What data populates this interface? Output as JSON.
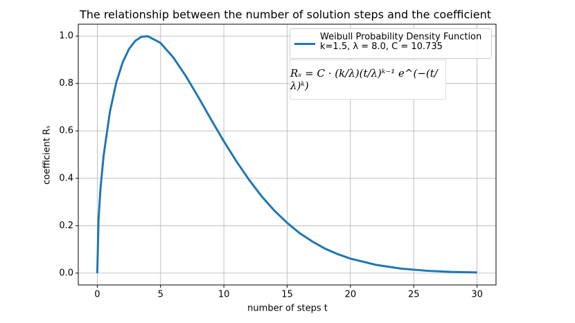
{
  "chart_data": {
    "type": "line",
    "title": "The relationship between the number of solution steps and the coefficient",
    "x_label": "number of steps t",
    "y_label": "coefficient Rₛ",
    "formula": "Rₛ = C · (k/λ)(t/λ)ᵏ⁻¹ e^(−(t/λ)ᵏ)",
    "x": [
      0,
      0.1,
      0.25,
      0.5,
      1,
      1.5,
      2,
      2.5,
      3,
      3.5,
      4,
      5,
      6,
      7,
      8,
      9,
      10,
      11,
      12,
      13,
      14,
      15,
      16,
      17,
      18,
      19,
      20,
      22,
      24,
      26,
      28,
      30
    ],
    "series": [
      {
        "name": "Weibull Probability Density Function\nk=1.5, λ = 8.0, C = 10.735",
        "color": "#1f77b4",
        "values": [
          0,
          0.225,
          0.354,
          0.495,
          0.681,
          0.804,
          0.888,
          0.945,
          0.98,
          0.997,
          0.999,
          0.971,
          0.91,
          0.831,
          0.741,
          0.647,
          0.556,
          0.471,
          0.393,
          0.323,
          0.263,
          0.212,
          0.168,
          0.133,
          0.103,
          0.08,
          0.061,
          0.035,
          0.019,
          0.01,
          0.005,
          0.003
        ]
      }
    ],
    "xlim": [
      -1.5,
      31.5
    ],
    "ylim": [
      -0.05,
      1.05
    ],
    "xticks": [
      0,
      5,
      10,
      15,
      20,
      25,
      30
    ],
    "yticks": [
      {
        "value": 0,
        "label": "0.0"
      },
      {
        "value": 0.2,
        "label": "0.2"
      },
      {
        "value": 0.4,
        "label": "0.4"
      },
      {
        "value": 0.6,
        "label": "0.6"
      },
      {
        "value": 0.8,
        "label": "0.8"
      },
      {
        "value": 1,
        "label": "1.0"
      }
    ],
    "grid": true
  }
}
